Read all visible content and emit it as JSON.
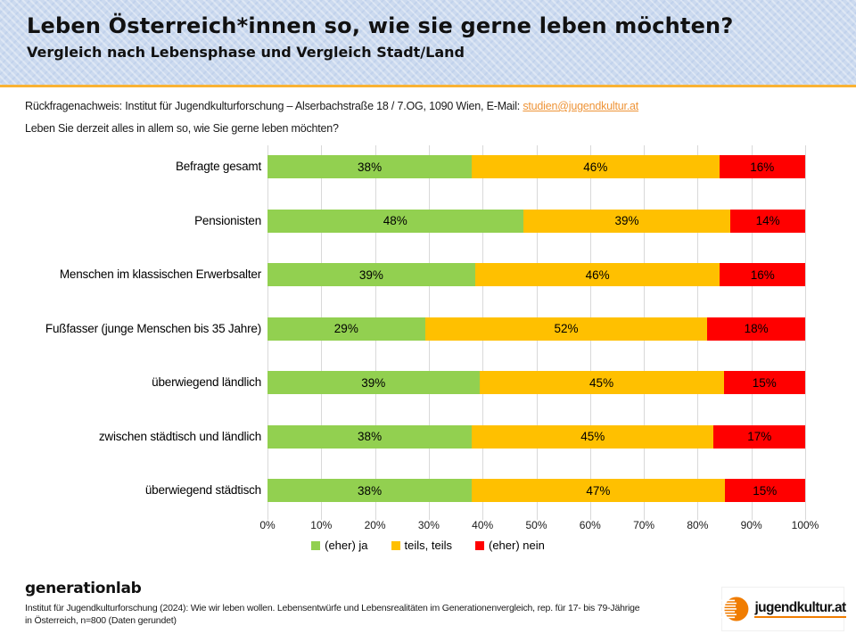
{
  "header": {
    "title": "Leben Österreich*innen so, wie sie gerne leben möchten?",
    "subtitle": "Vergleich nach Lebensphase und Vergleich Stadt/Land"
  },
  "contact": {
    "prefix": "Rückfragenachweis: Institut für Jugendkulturforschung – Alserbachstraße 18 / 7.OG, 1090 Wien, E-Mail: ",
    "email": "studien@jugendkultur.at"
  },
  "question": "Leben Sie derzeit alles in allem so, wie Sie gerne leben möchten?",
  "chart_data": {
    "type": "bar",
    "stacked": true,
    "orientation": "horizontal",
    "normalized_to_100": true,
    "grid": true,
    "legend_position": "bottom",
    "value_suffix": "%",
    "xlim": [
      0,
      100
    ],
    "x_ticks": [
      "0%",
      "10%",
      "20%",
      "30%",
      "40%",
      "50%",
      "60%",
      "70%",
      "80%",
      "90%",
      "100%"
    ],
    "categories": [
      "Befragte gesamt",
      "Pensionisten",
      "Menschen im klassischen Erwerbsalter",
      "Fußfasser (junge Menschen bis 35 Jahre)",
      "überwiegend ländlich",
      "zwischen städtisch und ländlich",
      "überwiegend städtisch"
    ],
    "series": [
      {
        "name": "(eher) ja",
        "color": "#92D050",
        "values": [
          38,
          48,
          39,
          29,
          39,
          38,
          38
        ]
      },
      {
        "name": "teils, teils",
        "color": "#FFC000",
        "values": [
          46,
          39,
          46,
          52,
          45,
          45,
          47
        ]
      },
      {
        "name": "(eher) nein",
        "color": "#FF0000",
        "values": [
          16,
          14,
          16,
          18,
          15,
          17,
          15
        ]
      }
    ]
  },
  "footer": {
    "brand": "generationlab",
    "source_line1": "Institut für Jugendkulturforschung (2024): Wie wir leben wollen. Lebensentwürfe und Lebensrealitäten im Generationenvergleich, rep. für 17- bis 79-Jährige",
    "source_line2": "in Österreich, n=800 (Daten gerundet)",
    "logo_text": "jugendkultur.at"
  },
  "colors": {
    "header-bg": "#ccdaef",
    "accent-orange": "#f9b233",
    "link-orange": "#ee9438",
    "logo-orange": "#f07c00",
    "gridline": "#d9d9d9"
  }
}
